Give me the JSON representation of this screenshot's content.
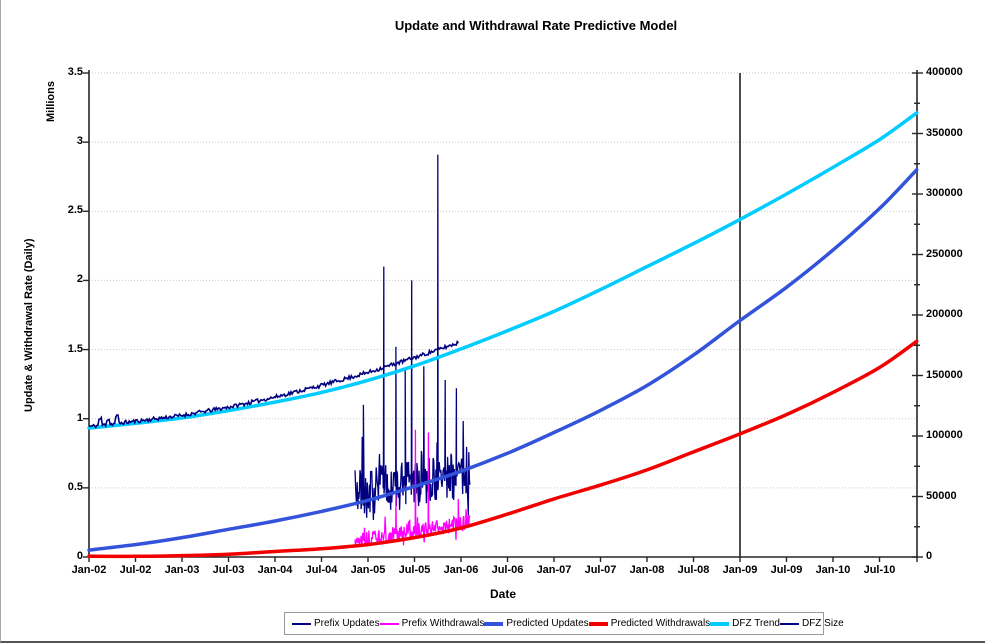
{
  "chart_data": {
    "type": "line",
    "title": "Update and Withdrawal Rate Predictive Model",
    "xlabel": "Date",
    "ylabel_left": "Update & Withdrawal Rate (Daily)",
    "ylabel_left_units": "Millions",
    "grid": {
      "horizontal_step": 0.5,
      "style": "dotted",
      "vertical": false
    },
    "x_axis": {
      "tick_labels": [
        "Jan-02",
        "Jul-02",
        "Jan-03",
        "Jul-03",
        "Jan-04",
        "Jul-04",
        "Jan-05",
        "Jul-05",
        "Jan-06",
        "Jul-06",
        "Jan-07",
        "Jul-07",
        "Jan-08",
        "Jul-08",
        "Jan-09",
        "Jul-09",
        "Jan-10",
        "Jul-10"
      ]
    },
    "left_axis": {
      "min": 0,
      "max": 3.5,
      "tick_step": 0.5,
      "tick_labels": [
        "0",
        "0.5",
        "1",
        "1.5",
        "2",
        "2.5",
        "3",
        "3.5"
      ]
    },
    "right_axis": {
      "min": 0,
      "max": 400000,
      "tick_step": 50000,
      "minor_tick_step": 25000,
      "tick_labels": [
        "0",
        "50000",
        "100000",
        "150000",
        "200000",
        "250000",
        "300000",
        "350000",
        "400000"
      ]
    },
    "t_years_since_jan02": [
      0,
      0.5,
      1,
      1.5,
      2,
      2.5,
      3,
      3.5,
      4,
      4.5,
      5,
      5.5,
      6,
      6.5,
      7,
      7.5,
      8,
      8.5,
      8.9
    ],
    "series": [
      {
        "name": "Predicted Updates",
        "axis": "left",
        "color": "#3353DB",
        "width": 3.5,
        "values": [
          0.05,
          0.09,
          0.14,
          0.2,
          0.26,
          0.33,
          0.41,
          0.51,
          0.62,
          0.75,
          0.9,
          1.06,
          1.24,
          1.46,
          1.71,
          1.95,
          2.22,
          2.52,
          2.8
        ]
      },
      {
        "name": "Predicted Withdrawals",
        "axis": "left",
        "color": "#F20000",
        "width": 3.5,
        "values": [
          0.005,
          0.005,
          0.01,
          0.02,
          0.04,
          0.06,
          0.09,
          0.14,
          0.21,
          0.31,
          0.42,
          0.52,
          0.63,
          0.76,
          0.89,
          1.03,
          1.19,
          1.37,
          1.56
        ]
      },
      {
        "name": "DFZ Trend",
        "axis": "right",
        "color": "#00CCFF",
        "width": 3.5,
        "values": [
          106500,
          110500,
          115000,
          121000,
          128000,
          136000,
          146000,
          158000,
          172000,
          187000,
          203000,
          221000,
          240000,
          259000,
          279000,
          300000,
          322000,
          345000,
          367000
        ]
      },
      {
        "name": "DFZ Size",
        "axis": "right",
        "color": "#000080",
        "width": 1.6,
        "t_values": [
          0,
          0.5,
          1,
          1.5,
          2,
          2.5,
          3,
          3.5,
          4
        ],
        "values": [
          107800,
          112200,
          117000,
          123800,
          132200,
          141800,
          152500,
          164800,
          177800
        ],
        "t_end": 3.98,
        "noise_amp": 1600,
        "seed": 11,
        "bumps": [
          {
            "t0": 0.1,
            "t1": 0.14,
            "dv": 5200
          },
          {
            "t0": 0.19,
            "t1": 0.22,
            "dv": 4300
          },
          {
            "t0": 0.28,
            "t1": 0.32,
            "dv": 5800
          }
        ]
      }
    ],
    "noisy_series": [
      {
        "name": "Prefix Updates",
        "axis": "left",
        "color": "#000080",
        "width": 1.3,
        "t_start": 2.86,
        "t_end": 4.1,
        "baseline_start": 0.46,
        "baseline_end": 0.6,
        "noise_amp": 0.17,
        "seed": 7,
        "spikes": [
          {
            "t": 2.95,
            "value": 1.1
          },
          {
            "t": 3.17,
            "value": 2.1
          },
          {
            "t": 3.3,
            "value": 1.52
          },
          {
            "t": 3.4,
            "value": 1.35
          },
          {
            "t": 3.47,
            "value": 2.0
          },
          {
            "t": 3.6,
            "value": 1.38
          },
          {
            "t": 3.75,
            "value": 2.91
          },
          {
            "t": 3.83,
            "value": 1.28
          },
          {
            "t": 3.95,
            "value": 1.22
          }
        ]
      },
      {
        "name": "Prefix Withdrawals",
        "axis": "left",
        "color": "#FF00FF",
        "width": 1.3,
        "t_start": 2.86,
        "t_end": 4.1,
        "baseline_start": 0.12,
        "baseline_end": 0.25,
        "noise_amp": 0.055,
        "seed": 13,
        "spikes": [
          {
            "t": 3.3,
            "value": 0.45
          },
          {
            "t": 3.51,
            "value": 0.92
          },
          {
            "t": 3.65,
            "value": 0.9
          },
          {
            "t": 3.97,
            "value": 0.42
          }
        ]
      }
    ],
    "marker_line": {
      "t": 7.0,
      "at_label": "Jan-09",
      "color": "#383838"
    },
    "legend": {
      "position": "bottom-center",
      "items": [
        {
          "label": "Prefix Updates",
          "color": "#000080",
          "thick": false
        },
        {
          "label": "Prefix Withdrawals",
          "color": "#FF00FF",
          "thick": false
        },
        {
          "label": "Predicted Updates",
          "color": "#3353DB",
          "thick": true
        },
        {
          "label": "Predicted Withdrawals",
          "color": "#F20000",
          "thick": true
        },
        {
          "label": "DFZ Trend",
          "color": "#00CCFF",
          "thick": true
        },
        {
          "label": "DFZ Size",
          "color": "#000080",
          "thick": false
        }
      ]
    }
  }
}
